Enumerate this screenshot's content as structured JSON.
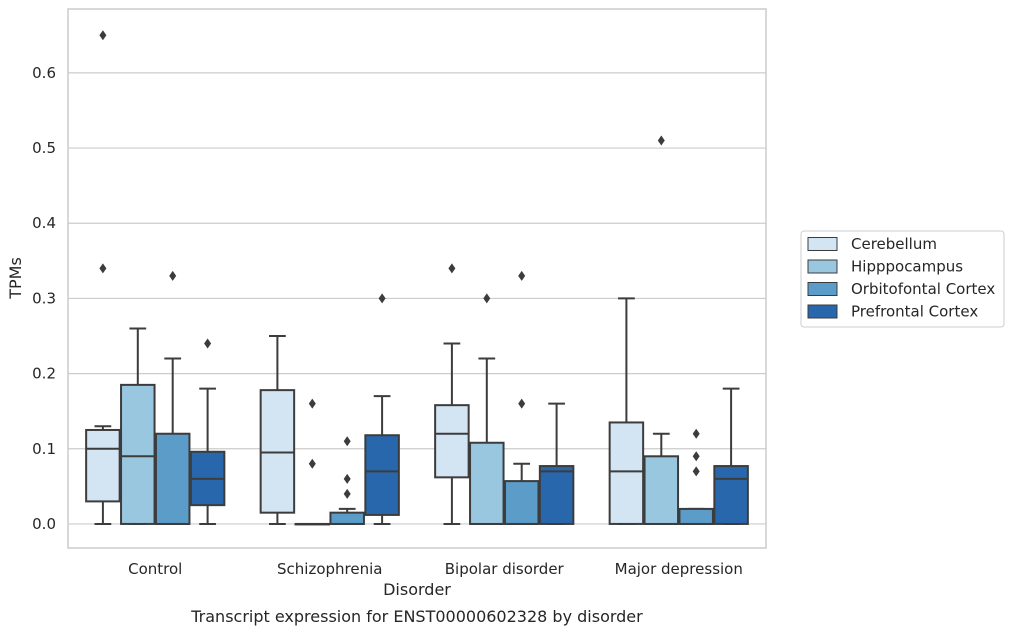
{
  "chart_data": {
    "type": "box",
    "title": "Transcript expression for ENST00000602328 by disorder",
    "xlabel": "Disorder",
    "ylabel": "TPMs",
    "ylim": [
      -0.032,
      0.685
    ],
    "yticks": [
      0.0,
      0.1,
      0.2,
      0.3,
      0.4,
      0.5,
      0.6
    ],
    "ytick_labels": [
      "0.0",
      "0.1",
      "0.2",
      "0.3",
      "0.4",
      "0.5",
      "0.6"
    ],
    "grid": "horizontal",
    "legend_position": "right",
    "categories": [
      "Control",
      "Schizophrenia",
      "Bipolar disorder",
      "Major depression"
    ],
    "series": [
      {
        "name": "Cerebellum",
        "color": "#d3e4f3",
        "boxes": [
          {
            "whislo": 0.0,
            "q1": 0.03,
            "med": 0.1,
            "q3": 0.125,
            "whishi": 0.13,
            "fliers": [
              0.34,
              0.65
            ]
          },
          {
            "whislo": 0.0,
            "q1": 0.015,
            "med": 0.095,
            "q3": 0.178,
            "whishi": 0.25,
            "fliers": []
          },
          {
            "whislo": 0.0,
            "q1": 0.062,
            "med": 0.12,
            "q3": 0.158,
            "whishi": 0.24,
            "fliers": [
              0.34
            ]
          },
          {
            "whislo": 0.0,
            "q1": 0.0,
            "med": 0.07,
            "q3": 0.135,
            "whishi": 0.3,
            "fliers": []
          }
        ]
      },
      {
        "name": "Hipppocampus",
        "color": "#9ac7e0",
        "boxes": [
          {
            "whislo": 0.0,
            "q1": 0.0,
            "med": 0.09,
            "q3": 0.185,
            "whishi": 0.26,
            "fliers": []
          },
          {
            "whislo": 0.0,
            "q1": 0.0,
            "med": 0.0,
            "q3": 0.0,
            "whishi": 0.0,
            "fliers": [
              0.08,
              0.16
            ]
          },
          {
            "whislo": 0.0,
            "q1": 0.0,
            "med": 0.0,
            "q3": 0.108,
            "whishi": 0.22,
            "fliers": [
              0.3
            ]
          },
          {
            "whislo": 0.0,
            "q1": 0.0,
            "med": 0.0,
            "q3": 0.09,
            "whishi": 0.12,
            "fliers": [
              0.51
            ]
          }
        ]
      },
      {
        "name": "Orbitofontal Cortex",
        "color": "#5b9cc9",
        "boxes": [
          {
            "whislo": 0.0,
            "q1": 0.0,
            "med": 0.0,
            "q3": 0.12,
            "whishi": 0.22,
            "fliers": [
              0.33
            ]
          },
          {
            "whislo": 0.0,
            "q1": 0.0,
            "med": 0.0,
            "q3": 0.015,
            "whishi": 0.02,
            "fliers": [
              0.04,
              0.06,
              0.11
            ]
          },
          {
            "whislo": 0.0,
            "q1": 0.0,
            "med": 0.0,
            "q3": 0.057,
            "whishi": 0.08,
            "fliers": [
              0.16,
              0.33
            ]
          },
          {
            "whislo": 0.0,
            "q1": 0.0,
            "med": 0.0,
            "q3": 0.02,
            "whishi": 0.02,
            "fliers": [
              0.07,
              0.09,
              0.12
            ]
          }
        ]
      },
      {
        "name": "Prefrontal Cortex",
        "color": "#2867ac",
        "boxes": [
          {
            "whislo": 0.0,
            "q1": 0.025,
            "med": 0.06,
            "q3": 0.096,
            "whishi": 0.18,
            "fliers": [
              0.24
            ]
          },
          {
            "whislo": 0.0,
            "q1": 0.012,
            "med": 0.07,
            "q3": 0.118,
            "whishi": 0.17,
            "fliers": [
              0.3
            ]
          },
          {
            "whislo": 0.0,
            "q1": 0.0,
            "med": 0.07,
            "q3": 0.077,
            "whishi": 0.16,
            "fliers": []
          },
          {
            "whislo": 0.0,
            "q1": 0.0,
            "med": 0.06,
            "q3": 0.077,
            "whishi": 0.18,
            "fliers": []
          }
        ]
      }
    ]
  }
}
